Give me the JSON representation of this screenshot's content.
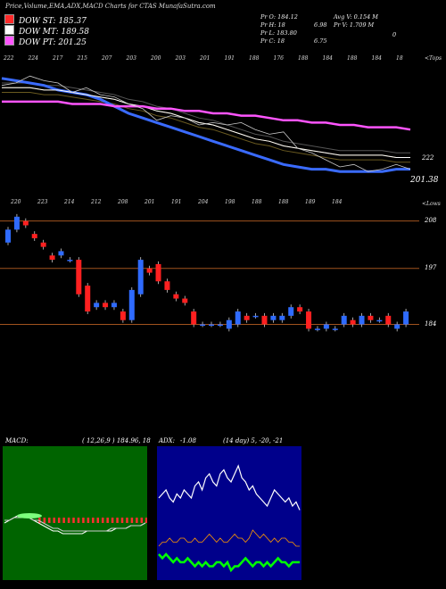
{
  "header": {
    "title": "Price,Volume,EMA,ADX,MACD Charts for CTAS MunafaSutra.com"
  },
  "dow_legend": [
    {
      "label": "DOW ST: 185.37",
      "color": "#ff2a2a"
    },
    {
      "label": "DOW MT: 189.58",
      "color": "#ffffff"
    },
    {
      "label": "DOW PT: 201.25",
      "color": "#ff55ff"
    }
  ],
  "quote": {
    "pr_o": "Pr O: 184.12",
    "avg_v": "Avg V: 0.154 M",
    "pr_h": "Pr H: 18",
    "pr_h_tail": "6.98",
    "pr_v": "Pr V: 1.709 M",
    "pr_l": "Pr L: 183.80",
    "pr_c": "Pr C: 18",
    "pr_c_tail": "6.75",
    "side_glyph": "0"
  },
  "ema_panel": {
    "tick_labels": [
      "222",
      "224",
      "217",
      "215",
      "207",
      "203",
      "200",
      "203",
      "201",
      "191",
      "188",
      "176",
      "188",
      "184",
      "188",
      "184",
      "18"
    ],
    "corner_label": "<Tops",
    "right_label": "222",
    "last_label": "201.38"
  },
  "candle_panel": {
    "tick_labels": [
      "220",
      "223",
      "214",
      "212",
      "208",
      "201",
      "191",
      "204",
      "198",
      "188",
      "188",
      "189",
      "184"
    ],
    "corner_label": "<Lows",
    "level_labels": [
      "208",
      "197",
      "184"
    ]
  },
  "macd_panel": {
    "label": "MACD:",
    "values": "( 12,26,9 ) 184.96, 18"
  },
  "adx_panel": {
    "label": "ADX:",
    "values": "-1.08",
    "period": "(14 day) 5, -20, -21"
  },
  "chart_data": [
    {
      "type": "line",
      "title": "Price,Volume,EMA,ADX,MACD Charts for CTAS MunafaSutra.com",
      "series": [
        {
          "name": "DOW ST: 185.37",
          "values": [
            223,
            222,
            221,
            220,
            218,
            217,
            216,
            214,
            211,
            208,
            206,
            204,
            202,
            200,
            198,
            196,
            194,
            192,
            190,
            188,
            186,
            185,
            184,
            184,
            183,
            183,
            183,
            183,
            184,
            184
          ]
        },
        {
          "name": "DOW MT: 189.58",
          "values": [
            219,
            219,
            219,
            218,
            218,
            217,
            216,
            215,
            214,
            212,
            211,
            209,
            208,
            206,
            204,
            203,
            201,
            199,
            197,
            196,
            194,
            193,
            192,
            191,
            190,
            190,
            190,
            190,
            189,
            189
          ]
        },
        {
          "name": "DOW PT: 201.25",
          "values": [
            213,
            213,
            213,
            213,
            213,
            212,
            212,
            212,
            211,
            211,
            211,
            210,
            210,
            209,
            209,
            208,
            208,
            207,
            207,
            206,
            205,
            205,
            204,
            204,
            203,
            203,
            202,
            202,
            202,
            201
          ]
        }
      ],
      "price": [
        220,
        221,
        224,
        222,
        221,
        217,
        219,
        216,
        215,
        212,
        210,
        205,
        207,
        206,
        203,
        204,
        203,
        204,
        201,
        199,
        200,
        193,
        191,
        188,
        185,
        186,
        183,
        184,
        186,
        184
      ]
    },
    {
      "type": "candlestick",
      "candles": [
        {
          "o": 203,
          "c": 206
        },
        {
          "o": 206,
          "c": 209
        },
        {
          "o": 208,
          "c": 207
        },
        {
          "o": 205,
          "c": 204
        },
        {
          "o": 203,
          "c": 202
        },
        {
          "o": 200,
          "c": 199
        },
        {
          "o": 200,
          "c": 201
        },
        {
          "o": 199,
          "c": 199
        },
        {
          "o": 199,
          "c": 191
        },
        {
          "o": 193,
          "c": 187
        },
        {
          "o": 188,
          "c": 189
        },
        {
          "o": 189,
          "c": 188
        },
        {
          "o": 188,
          "c": 189
        },
        {
          "o": 187,
          "c": 185
        },
        {
          "o": 185,
          "c": 192
        },
        {
          "o": 191,
          "c": 199
        },
        {
          "o": 197,
          "c": 196
        },
        {
          "o": 198,
          "c": 194
        },
        {
          "o": 194,
          "c": 192
        },
        {
          "o": 191,
          "c": 190
        },
        {
          "o": 190,
          "c": 189
        },
        {
          "o": 187,
          "c": 184
        },
        {
          "o": 184,
          "c": 184
        },
        {
          "o": 184,
          "c": 184
        },
        {
          "o": 184,
          "c": 184
        },
        {
          "o": 183,
          "c": 185
        },
        {
          "o": 184,
          "c": 187
        },
        {
          "o": 186,
          "c": 185
        },
        {
          "o": 186,
          "c": 186
        },
        {
          "o": 186,
          "c": 184
        },
        {
          "o": 185,
          "c": 186
        },
        {
          "o": 185,
          "c": 186
        },
        {
          "o": 186,
          "c": 188
        },
        {
          "o": 188,
          "c": 187
        },
        {
          "o": 187,
          "c": 183
        },
        {
          "o": 183,
          "c": 183
        },
        {
          "o": 183,
          "c": 184
        },
        {
          "o": 183,
          "c": 183
        },
        {
          "o": 184,
          "c": 186
        },
        {
          "o": 185,
          "c": 184
        },
        {
          "o": 184,
          "c": 186
        },
        {
          "o": 186,
          "c": 185
        },
        {
          "o": 185,
          "c": 185
        },
        {
          "o": 186,
          "c": 184
        },
        {
          "o": 183,
          "c": 184
        },
        {
          "o": 184,
          "c": 187
        }
      ],
      "levels": [
        208,
        197,
        184
      ]
    },
    {
      "type": "line",
      "macd": [
        -2,
        -1,
        0,
        1,
        1,
        0,
        -1,
        -2,
        -3,
        -4,
        -5,
        -5,
        -6,
        -6,
        -6,
        -6,
        -6,
        -5,
        -5,
        -5,
        -5,
        -5,
        -5,
        -4,
        -4,
        -4,
        -3,
        -3,
        -3,
        -2
      ],
      "signal": [
        -1,
        -1,
        0,
        0,
        0,
        0,
        -1,
        -1,
        -2,
        -3,
        -4,
        -4,
        -5,
        -5,
        -5,
        -5,
        -5,
        -5,
        -5,
        -5,
        -5,
        -5,
        -4,
        -4,
        -4,
        -4,
        -3,
        -3,
        -3,
        -2
      ],
      "histogram": [
        2,
        2,
        2,
        2,
        2,
        2,
        2,
        2,
        2,
        2,
        2,
        2,
        2,
        2,
        2,
        2,
        2,
        2,
        2,
        2,
        2,
        2,
        2,
        2,
        2,
        2,
        2,
        2,
        2,
        2
      ]
    },
    {
      "type": "line",
      "adx": [
        20,
        21,
        22,
        20,
        19,
        21,
        20,
        22,
        21,
        20,
        23,
        24,
        22,
        25,
        26,
        24,
        23,
        26,
        27,
        25,
        24,
        26,
        28,
        25,
        24,
        22,
        23,
        21,
        20,
        19,
        18,
        20,
        22,
        21,
        20,
        19,
        20,
        18,
        19,
        17
      ],
      "plus_di": [
        8,
        9,
        9,
        10,
        9,
        9,
        10,
        10,
        9,
        9,
        10,
        9,
        9,
        10,
        11,
        10,
        9,
        10,
        9,
        9,
        10,
        11,
        10,
        10,
        9,
        10,
        12,
        11,
        10,
        11,
        10,
        9,
        10,
        9,
        10,
        10,
        9,
        9,
        8,
        8
      ],
      "minus_di": [
        6,
        5,
        6,
        5,
        4,
        5,
        4,
        4,
        5,
        4,
        3,
        4,
        3,
        4,
        3,
        3,
        4,
        4,
        3,
        4,
        2,
        3,
        3,
        4,
        5,
        4,
        3,
        4,
        4,
        3,
        4,
        3,
        4,
        5,
        4,
        4,
        3,
        4,
        4,
        4
      ]
    }
  ]
}
